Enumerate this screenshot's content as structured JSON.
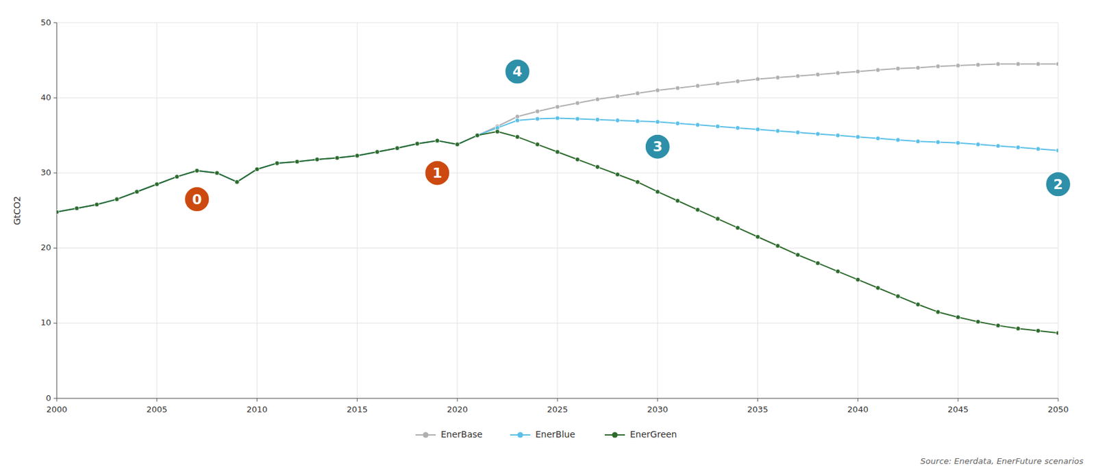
{
  "chart_data": {
    "type": "line",
    "y_label": "GtCO2",
    "source": "Source: Enerdata, EnerFuture scenarios",
    "x": [
      2000,
      2001,
      2002,
      2003,
      2004,
      2005,
      2006,
      2007,
      2008,
      2009,
      2010,
      2011,
      2012,
      2013,
      2014,
      2015,
      2016,
      2017,
      2018,
      2019,
      2020,
      2021,
      2022,
      2023,
      2024,
      2025,
      2026,
      2027,
      2028,
      2029,
      2030,
      2031,
      2032,
      2033,
      2034,
      2035,
      2036,
      2037,
      2038,
      2039,
      2040,
      2041,
      2042,
      2043,
      2044,
      2045,
      2046,
      2047,
      2048,
      2049,
      2050
    ],
    "series": [
      {
        "name": "EnerBase",
        "color": "#b0b0b0",
        "marker": "circle",
        "values": [
          24.8,
          25.3,
          25.8,
          26.5,
          27.5,
          28.5,
          29.5,
          30.3,
          30.0,
          28.8,
          30.5,
          31.3,
          31.5,
          31.8,
          32.0,
          32.3,
          32.8,
          33.3,
          33.9,
          34.3,
          33.8,
          35.0,
          36.2,
          37.5,
          38.2,
          38.8,
          39.3,
          39.8,
          40.2,
          40.6,
          41.0,
          41.3,
          41.6,
          41.9,
          42.2,
          42.5,
          42.7,
          42.9,
          43.1,
          43.3,
          43.5,
          43.7,
          43.9,
          44.0,
          44.2,
          44.3,
          44.4,
          44.5,
          44.5,
          44.5,
          44.5
        ]
      },
      {
        "name": "EnerBlue",
        "color": "#5bc0e8",
        "marker": "circle",
        "values": [
          24.8,
          25.3,
          25.8,
          26.5,
          27.5,
          28.5,
          29.5,
          30.3,
          30.0,
          28.8,
          30.5,
          31.3,
          31.5,
          31.8,
          32.0,
          32.3,
          32.8,
          33.3,
          33.9,
          34.3,
          33.8,
          35.0,
          36.0,
          37.0,
          37.2,
          37.3,
          37.2,
          37.1,
          37.0,
          36.9,
          36.8,
          36.6,
          36.4,
          36.2,
          36.0,
          35.8,
          35.6,
          35.4,
          35.2,
          35.0,
          34.8,
          34.6,
          34.4,
          34.2,
          34.1,
          34.0,
          33.8,
          33.6,
          33.4,
          33.2,
          33.0
        ]
      },
      {
        "name": "EnerGreen",
        "color": "#2d6b2d",
        "marker": "circle",
        "values": [
          24.8,
          25.3,
          25.8,
          26.5,
          27.5,
          28.5,
          29.5,
          30.3,
          30.0,
          28.8,
          30.5,
          31.3,
          31.5,
          31.8,
          32.0,
          32.3,
          32.8,
          33.3,
          33.9,
          34.3,
          33.8,
          35.0,
          35.5,
          34.8,
          33.8,
          32.8,
          31.8,
          30.8,
          29.8,
          28.8,
          27.5,
          26.3,
          25.1,
          23.9,
          22.7,
          21.5,
          20.3,
          19.1,
          18.0,
          16.9,
          15.8,
          14.7,
          13.6,
          12.5,
          11.5,
          10.8,
          10.2,
          9.7,
          9.3,
          9.0,
          8.7
        ]
      }
    ],
    "annotations": [
      {
        "text": "0",
        "x": 2007,
        "y": 26.5,
        "color": "#cc4a10"
      },
      {
        "text": "1",
        "x": 2019,
        "y": 30.0,
        "color": "#cc4a10"
      },
      {
        "text": "2",
        "x": 2050,
        "y": 28.5,
        "color": "#2d8fa8"
      },
      {
        "text": "3",
        "x": 2030,
        "y": 33.5,
        "color": "#2d8fa8"
      },
      {
        "text": "4",
        "x": 2023,
        "y": 43.5,
        "color": "#2d8fa8"
      }
    ],
    "xlim": [
      2000,
      2050
    ],
    "ylim": [
      0,
      50
    ],
    "xticks": [
      2000,
      2005,
      2010,
      2015,
      2020,
      2025,
      2030,
      2035,
      2040,
      2045,
      2050
    ],
    "yticks": [
      0,
      10,
      20,
      30,
      40,
      50
    ],
    "grid": true,
    "legend": "bottom"
  }
}
